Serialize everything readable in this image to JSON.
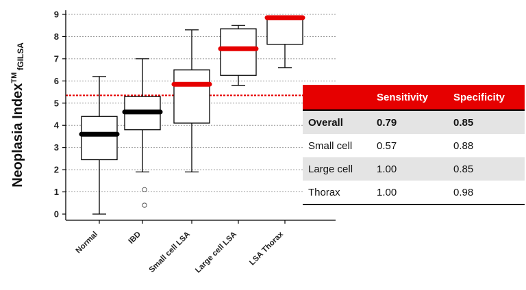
{
  "chart_data": {
    "type": "boxplot",
    "ylabel": "Neoplasia Index",
    "ylabel_sup": "TM",
    "ylabel_sub": "fGILSA",
    "ylim": [
      0,
      9
    ],
    "yticks": [
      0,
      1,
      2,
      3,
      4,
      5,
      6,
      7,
      8,
      9
    ],
    "grid": true,
    "cutoff": {
      "value": 5.35,
      "color": "#e60000",
      "style": "dotted"
    },
    "categories": [
      "Normal",
      "IBD",
      "Small cell LSA",
      "Large cell LSA",
      "LSA Thorax"
    ],
    "boxes": [
      {
        "category": "Normal",
        "whisker_low": 0.0,
        "q1": 2.45,
        "median": 3.6,
        "q3": 4.4,
        "whisker_high": 6.2,
        "outliers": [],
        "median_color": "#000000"
      },
      {
        "category": "IBD",
        "whisker_low": 1.9,
        "q1": 3.8,
        "median": 4.6,
        "q3": 5.3,
        "whisker_high": 7.0,
        "outliers": [
          1.1,
          0.4
        ],
        "median_color": "#000000"
      },
      {
        "category": "Small cell LSA",
        "whisker_low": 1.9,
        "q1": 4.1,
        "median": 5.85,
        "q3": 6.5,
        "whisker_high": 8.3,
        "outliers": [],
        "median_color": "#e60000"
      },
      {
        "category": "Large cell LSA",
        "whisker_low": 5.8,
        "q1": 6.25,
        "median": 7.45,
        "q3": 8.35,
        "whisker_high": 8.5,
        "outliers": [],
        "median_color": "#e60000"
      },
      {
        "category": "LSA Thorax",
        "whisker_low": 6.6,
        "q1": 7.65,
        "median": 8.85,
        "q3": 8.9,
        "whisker_high": 8.9,
        "outliers": [],
        "median_color": "#e60000"
      }
    ]
  },
  "table": {
    "headers": [
      "",
      "Sensitivity",
      "Specificity"
    ],
    "rows": [
      [
        "Overall",
        "0.79",
        "0.85"
      ],
      [
        "Small cell",
        "0.57",
        "0.88"
      ],
      [
        "Large cell",
        "1.00",
        "0.85"
      ],
      [
        "Thorax",
        "1.00",
        "0.98"
      ]
    ],
    "header_color": "#e60000"
  }
}
